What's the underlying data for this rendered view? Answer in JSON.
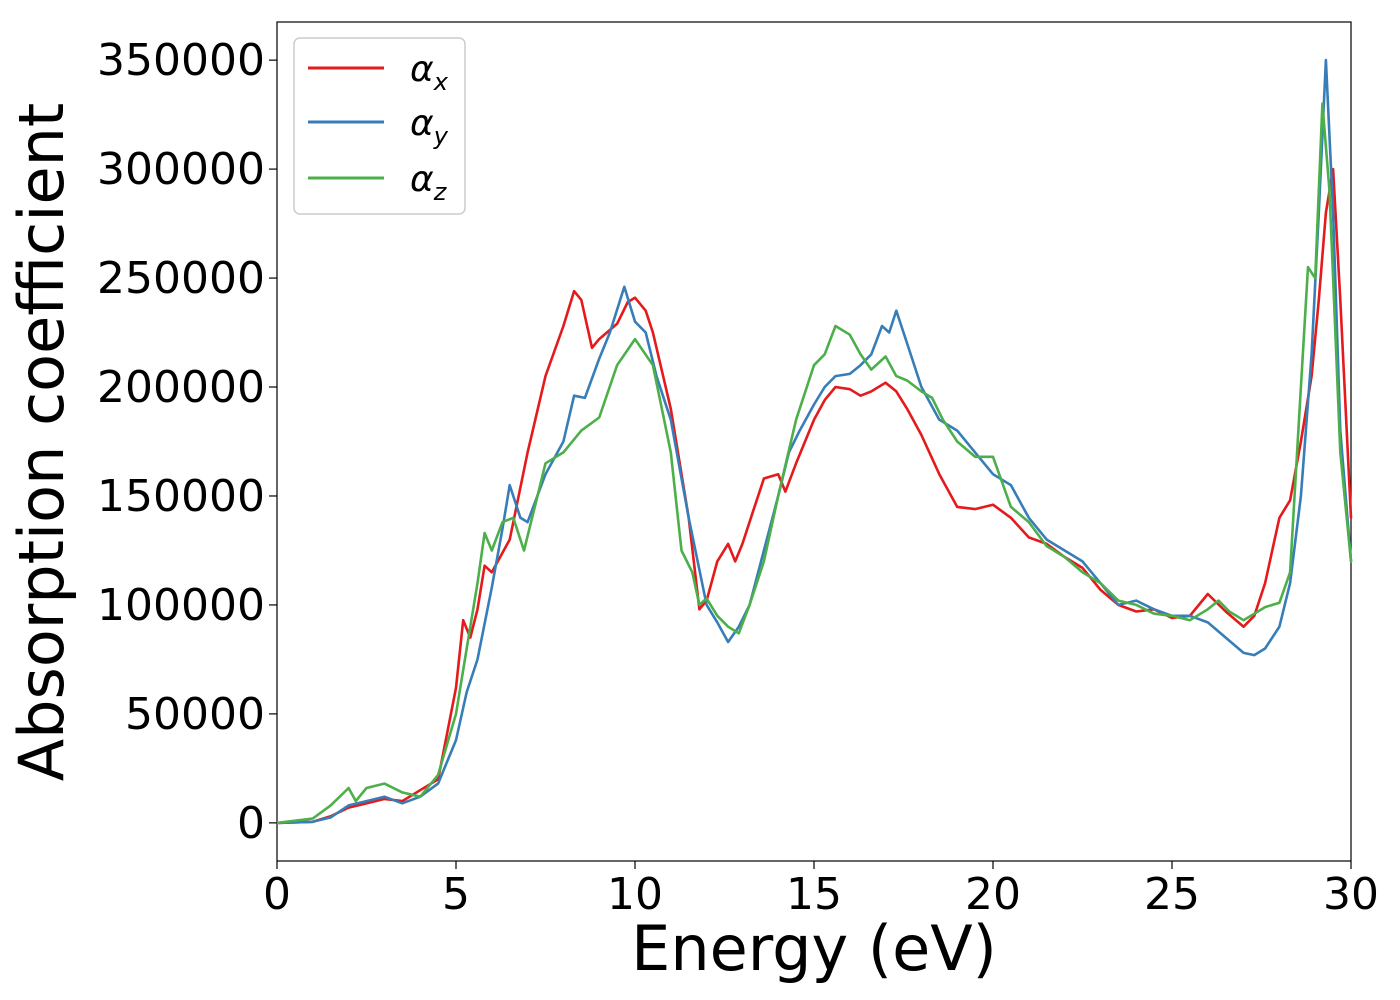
{
  "chart_data": {
    "type": "line",
    "xlabel": "Energy (eV)",
    "ylabel": "Absorption coefficient",
    "xlim": [
      0,
      30
    ],
    "ylim": [
      -17500,
      367500
    ],
    "xticks": [
      0,
      5,
      10,
      15,
      20,
      25,
      30
    ],
    "xtick_labels": [
      "0",
      "5",
      "10",
      "15",
      "20",
      "25",
      "30"
    ],
    "yticks": [
      0,
      50000,
      100000,
      150000,
      200000,
      250000,
      300000,
      350000
    ],
    "ytick_labels": [
      "0",
      "50000",
      "100000",
      "150000",
      "200000",
      "250000",
      "300000",
      "350000"
    ],
    "grid": false,
    "legend_position": "top-left",
    "series": [
      {
        "name": "α",
        "subscript": "x",
        "color": "#e41a1c",
        "x": [
          0,
          1,
          1.5,
          2,
          2.5,
          3,
          3.5,
          4,
          4.5,
          4.8,
          5,
          5.2,
          5.4,
          5.6,
          5.8,
          6,
          6.5,
          7,
          7.5,
          8,
          8.3,
          8.5,
          8.8,
          9,
          9.5,
          9.8,
          10,
          10.3,
          10.5,
          11,
          11.5,
          11.8,
          12,
          12.3,
          12.6,
          12.8,
          13,
          13.3,
          13.6,
          14,
          14.2,
          14.5,
          15,
          15.3,
          15.6,
          16,
          16.3,
          16.6,
          17,
          17.3,
          17.6,
          18,
          18.5,
          19,
          19.5,
          20,
          20.5,
          21,
          21.5,
          22,
          22.5,
          23,
          23.5,
          24,
          24.5,
          25,
          25.5,
          26,
          26.5,
          27,
          27.3,
          27.6,
          28,
          28.3,
          28.6,
          28.9,
          29.1,
          29.3,
          29.5,
          29.7,
          30
        ],
        "y": [
          0,
          500,
          3000,
          7000,
          9000,
          11000,
          10000,
          15000,
          20000,
          45000,
          62000,
          93000,
          85000,
          98000,
          118000,
          115000,
          130000,
          170000,
          205000,
          228000,
          244000,
          240000,
          218000,
          222000,
          229000,
          239000,
          241000,
          235000,
          225000,
          190000,
          140000,
          98000,
          102000,
          120000,
          128000,
          120000,
          128000,
          143000,
          158000,
          160000,
          152000,
          165000,
          185000,
          194000,
          200000,
          199000,
          196000,
          198000,
          202000,
          198000,
          190000,
          178000,
          160000,
          145000,
          144000,
          146000,
          140000,
          131000,
          128000,
          122000,
          117000,
          107000,
          100000,
          97000,
          98000,
          94000,
          95000,
          105000,
          97000,
          90000,
          95000,
          110000,
          140000,
          148000,
          175000,
          205000,
          240000,
          280000,
          300000,
          240000,
          140000
        ]
      },
      {
        "name": "α",
        "subscript": "y",
        "color": "#377eb8",
        "x": [
          0,
          1,
          1.5,
          2,
          2.5,
          3,
          3.5,
          4,
          4.5,
          5,
          5.3,
          5.6,
          6,
          6.3,
          6.5,
          6.8,
          7,
          7.5,
          8,
          8.3,
          8.6,
          9,
          9.3,
          9.7,
          10,
          10.3,
          10.6,
          11,
          11.5,
          12,
          12.3,
          12.6,
          12.9,
          13.2,
          13.6,
          14,
          14.3,
          14.6,
          15,
          15.3,
          15.6,
          16,
          16.3,
          16.6,
          16.9,
          17.1,
          17.3,
          17.6,
          18,
          18.5,
          19,
          19.5,
          20,
          20.5,
          21,
          21.5,
          22,
          22.5,
          23,
          23.5,
          24,
          24.5,
          25,
          25.5,
          26,
          26.5,
          27,
          27.3,
          27.6,
          28,
          28.3,
          28.6,
          28.9,
          29.1,
          29.3,
          29.5,
          29.7,
          30
        ],
        "y": [
          0,
          500,
          2500,
          8000,
          10000,
          12000,
          9000,
          12000,
          18000,
          38000,
          60000,
          75000,
          108000,
          135000,
          155000,
          140000,
          138000,
          160000,
          175000,
          196000,
          195000,
          213000,
          225000,
          246000,
          230000,
          225000,
          205000,
          185000,
          140000,
          100000,
          92000,
          83000,
          90000,
          100000,
          125000,
          150000,
          170000,
          180000,
          192000,
          200000,
          205000,
          206000,
          210000,
          215000,
          228000,
          225000,
          235000,
          220000,
          200000,
          185000,
          180000,
          170000,
          160000,
          155000,
          140000,
          130000,
          125000,
          120000,
          110000,
          100000,
          102000,
          98000,
          95000,
          95000,
          92000,
          85000,
          78000,
          77000,
          80000,
          90000,
          110000,
          150000,
          215000,
          280000,
          350000,
          280000,
          180000,
          120000
        ]
      },
      {
        "name": "α",
        "subscript": "z",
        "color": "#4daf4a",
        "x": [
          0,
          1,
          1.5,
          2,
          2.2,
          2.5,
          3,
          3.5,
          4,
          4.5,
          5,
          5.3,
          5.6,
          5.8,
          6,
          6.3,
          6.6,
          6.9,
          7.2,
          7.5,
          8,
          8.5,
          9,
          9.5,
          10,
          10.5,
          11,
          11.3,
          11.6,
          11.8,
          12,
          12.3,
          12.6,
          12.9,
          13.2,
          13.6,
          14,
          14.5,
          15,
          15.3,
          15.6,
          16,
          16.3,
          16.6,
          17,
          17.3,
          17.6,
          18,
          18.3,
          18.6,
          19,
          19.5,
          20,
          20.5,
          21,
          21.5,
          22,
          22.5,
          23,
          23.5,
          24,
          24.5,
          25,
          25.5,
          26,
          26.3,
          26.6,
          27,
          27.3,
          27.6,
          28,
          28.3,
          28.6,
          28.8,
          29,
          29.2,
          29.4,
          29.7,
          30
        ],
        "y": [
          0,
          2000,
          8000,
          16000,
          10000,
          16000,
          18000,
          14000,
          12000,
          22000,
          50000,
          80000,
          110000,
          133000,
          125000,
          138000,
          140000,
          125000,
          145000,
          165000,
          170000,
          180000,
          186000,
          210000,
          222000,
          210000,
          170000,
          125000,
          115000,
          100000,
          103000,
          95000,
          90000,
          87000,
          100000,
          120000,
          150000,
          185000,
          210000,
          215000,
          228000,
          224000,
          215000,
          208000,
          214000,
          205000,
          203000,
          198000,
          195000,
          185000,
          175000,
          168000,
          168000,
          145000,
          138000,
          127000,
          122000,
          115000,
          110000,
          102000,
          100000,
          96000,
          95000,
          93000,
          98000,
          102000,
          97000,
          93000,
          96000,
          99000,
          101000,
          115000,
          200000,
          255000,
          250000,
          330000,
          290000,
          170000,
          120000
        ]
      }
    ]
  }
}
